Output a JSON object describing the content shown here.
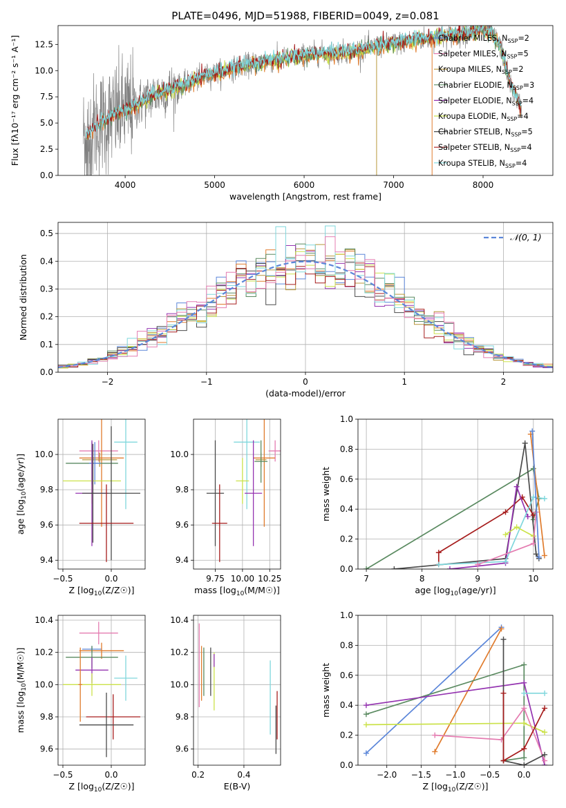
{
  "figure_title": "PLATE=0496, MJD=51988, FIBERID=0049, z=0.081",
  "colors": {
    "Chabrier MILES": "#5b86d9",
    "Salpeter MILES": "#e07b2c",
    "Kroupa MILES": "#b8963a",
    "Chabrier ELODIE": "#5a8a60",
    "Salpeter ELODIE": "#9433b0",
    "Kroupa ELODIE": "#cbe24a",
    "Chabrier STELIB": "#4a4a4a",
    "Salpeter STELIB": "#a61c1c",
    "Kroupa STELIB": "#7fd7dc",
    "extra": "#e47bb0",
    "data": "#808080",
    "norm": "#5b86d9"
  },
  "chart_data": [
    {
      "type": "line",
      "id": "spectrum",
      "xlabel": "wavelength [Angstrom, rest frame]",
      "ylabel": "Flux [fλ10⁻¹⁷ erg cm⁻² s⁻¹ A⁻¹]",
      "xlim": [
        3250,
        8780
      ],
      "ylim": [
        0,
        14.3
      ],
      "xticks": [
        4000,
        5000,
        6000,
        7000,
        8000
      ],
      "yticks": [
        0.0,
        2.5,
        5.0,
        7.5,
        10.0,
        12.5
      ],
      "legend_position": "top-right",
      "legend": [
        {
          "label": "Chabrier MILES, N",
          "sub": "SSP",
          "n": "=2",
          "color": "Chabrier MILES"
        },
        {
          "label": "Salpeter MILES, N",
          "sub": "SSP",
          "n": "=5",
          "color": "extra"
        },
        {
          "label": "Kroupa MILES, N",
          "sub": "SSP",
          "n": "=2",
          "color": "Kroupa MILES"
        },
        {
          "label": "Chabrier ELODIE, N",
          "sub": "SSP",
          "n": "=3",
          "color": "Chabrier ELODIE"
        },
        {
          "label": "Salpeter ELODIE, N",
          "sub": "SSP",
          "n": "=4",
          "color": "Salpeter ELODIE"
        },
        {
          "label": "Kroupa ELODIE, N",
          "sub": "SSP",
          "n": "=4",
          "color": "Kroupa ELODIE"
        },
        {
          "label": "Chabrier STELIB, N",
          "sub": "SSP",
          "n": "=5",
          "color": "Chabrier STELIB"
        },
        {
          "label": "Salpeter STELIB, N",
          "sub": "SSP",
          "n": "=4",
          "color": "Salpeter STELIB"
        },
        {
          "label": "Kroupa STELIB, N",
          "sub": "SSP",
          "n": "=4",
          "color": "Kroupa STELIB"
        }
      ],
      "trend": [
        [
          3530,
          3.8
        ],
        [
          3650,
          4.5
        ],
        [
          3750,
          5.2
        ],
        [
          3900,
          5.8
        ],
        [
          4000,
          6.3
        ],
        [
          4150,
          6.8
        ],
        [
          4300,
          7.6
        ],
        [
          4500,
          8.2
        ],
        [
          4700,
          8.8
        ],
        [
          4900,
          9.5
        ],
        [
          5100,
          10.0
        ],
        [
          5300,
          10.4
        ],
        [
          5500,
          10.8
        ],
        [
          5700,
          11.0
        ],
        [
          5900,
          11.3
        ],
        [
          6100,
          11.6
        ],
        [
          6300,
          11.7
        ],
        [
          6500,
          11.8
        ],
        [
          6700,
          12.1
        ],
        [
          6900,
          12.5
        ],
        [
          7100,
          12.7
        ],
        [
          7300,
          13.0
        ],
        [
          7500,
          13.2
        ],
        [
          7700,
          13.4
        ],
        [
          7900,
          13.7
        ],
        [
          8000,
          13.9
        ],
        [
          8100,
          13.6
        ],
        [
          8200,
          12.2
        ],
        [
          8300,
          8.8
        ],
        [
          8420,
          6.5
        ]
      ]
    },
    {
      "type": "step",
      "id": "residual-histogram",
      "xlabel": "(data-model)/error",
      "ylabel": "Normed distribution",
      "xlim": [
        -2.5,
        2.5
      ],
      "ylim": [
        0,
        0.54
      ],
      "xticks": [
        -2,
        -1,
        0,
        1,
        2
      ],
      "yticks": [
        0.0,
        0.1,
        0.2,
        0.3,
        0.4,
        0.5
      ],
      "grid": true,
      "bin_width": 0.1,
      "legend_label": "𝒩(0, 1)",
      "legend_position": "top-right",
      "series_colors": [
        "Chabrier MILES",
        "Salpeter MILES",
        "Kroupa MILES",
        "Chabrier ELODIE",
        "Salpeter ELODIE",
        "Kroupa ELODIE",
        "Chabrier STELIB",
        "Salpeter STELIB",
        "Kroupa STELIB",
        "extra"
      ]
    },
    {
      "type": "errorbar",
      "id": "age-vs-z",
      "xlabel": "Z [log10(Z/Z☉)]",
      "ylabel": "age  [log10(age/yr)]",
      "xlim": [
        -0.55,
        0.35
      ],
      "ylim": [
        9.35,
        10.2
      ],
      "xticks": [
        -0.5,
        0.0
      ],
      "yticks": [
        9.4,
        9.6,
        9.8,
        10.0
      ],
      "grid": true,
      "points": [
        {
          "x": 0.15,
          "y": 10.07,
          "xerr": 0.12,
          "yerr": 0.38,
          "color": "Kroupa STELIB"
        },
        {
          "x": -0.13,
          "y": 10.02,
          "xerr": 0.2,
          "yerr": 0.06,
          "color": "extra"
        },
        {
          "x": -0.1,
          "y": 9.98,
          "xerr": 0.23,
          "yerr": 0.39,
          "color": "Salpeter MILES"
        },
        {
          "x": -0.12,
          "y": 9.97,
          "xerr": 0.18,
          "yerr": 0.04,
          "color": "Kroupa MILES"
        },
        {
          "x": -0.2,
          "y": 9.95,
          "xerr": 0.27,
          "yerr": 0.12,
          "color": "Chabrier ELODIE"
        },
        {
          "x": -0.17,
          "y": 9.95,
          "xerr": 0.06,
          "yerr": 0.12,
          "color": "Chabrier MILES"
        },
        {
          "x": -0.2,
          "y": 9.85,
          "xerr": 0.3,
          "yerr": 0.13,
          "color": "Kroupa ELODIE"
        },
        {
          "x": -0.2,
          "y": 9.78,
          "xerr": 0.17,
          "yerr": 0.3,
          "color": "Salpeter ELODIE"
        },
        {
          "x": 0.0,
          "y": 9.78,
          "xerr": 0.3,
          "yerr": 0.38,
          "color": "Chabrier STELIB"
        },
        {
          "x": -0.19,
          "y": 9.78,
          "xerr": 0.02,
          "yerr": 0.28,
          "color": "Chabrier STELIB"
        },
        {
          "x": -0.05,
          "y": 9.61,
          "xerr": 0.28,
          "yerr": 0.22,
          "color": "Salpeter STELIB"
        }
      ]
    },
    {
      "type": "errorbar",
      "id": "age-vs-mass",
      "xlabel": "mass [log10(M/M☉)]",
      "ylabel": "",
      "xlim": [
        9.55,
        10.35
      ],
      "ylim": [
        9.35,
        10.2
      ],
      "xticks": [
        9.75,
        10.0,
        10.25
      ],
      "xticklabels": [
        "9.75",
        "10.00",
        "10.25"
      ],
      "yticks": [
        9.4,
        9.6,
        9.8,
        10.0
      ],
      "grid": true,
      "points": [
        {
          "x": 10.04,
          "y": 10.07,
          "xerr": 0.12,
          "yerr": 0.38,
          "color": "Kroupa STELIB"
        },
        {
          "x": 10.3,
          "y": 10.02,
          "xerr": 0.06,
          "yerr": 0.06,
          "color": "extra"
        },
        {
          "x": 10.2,
          "y": 9.98,
          "xerr": 0.1,
          "yerr": 0.39,
          "color": "Salpeter MILES"
        },
        {
          "x": 10.17,
          "y": 9.97,
          "xerr": 0.05,
          "yerr": 0.04,
          "color": "Kroupa MILES"
        },
        {
          "x": 10.17,
          "y": 9.96,
          "xerr": 0.06,
          "yerr": 0.12,
          "color": "Chabrier ELODIE"
        },
        {
          "x": 10.0,
          "y": 9.85,
          "xerr": 0.06,
          "yerr": 0.13,
          "color": "Kroupa ELODIE"
        },
        {
          "x": 10.1,
          "y": 9.78,
          "xerr": 0.08,
          "yerr": 0.3,
          "color": "Salpeter ELODIE"
        },
        {
          "x": 9.75,
          "y": 9.78,
          "xerr": 0.08,
          "yerr": 0.3,
          "color": "Chabrier STELIB"
        },
        {
          "x": 9.79,
          "y": 9.61,
          "xerr": 0.07,
          "yerr": 0.22,
          "color": "Salpeter STELIB"
        }
      ]
    },
    {
      "type": "line",
      "id": "mass-weight-vs-age",
      "xlabel": "age  [log10(age/yr)]",
      "ylabel": "mass weight",
      "xlim": [
        6.85,
        10.35
      ],
      "ylim": [
        0,
        1.0
      ],
      "xticks": [
        7,
        8,
        9,
        10
      ],
      "yticks": [
        0.0,
        0.2,
        0.4,
        0.6,
        0.8,
        1.0
      ],
      "grid": true,
      "series": [
        {
          "color": "Chabrier ELODIE",
          "points": [
            [
              7.0,
              0.0
            ],
            [
              10.0,
              0.67
            ],
            [
              10.1,
              0.47
            ],
            [
              10.0,
              0.33
            ]
          ]
        },
        {
          "color": "Chabrier STELIB",
          "points": [
            [
              7.5,
              0.0
            ],
            [
              9.5,
              0.07
            ],
            [
              9.85,
              0.84
            ],
            [
              10.05,
              0.1
            ],
            [
              10.1,
              0.07
            ]
          ]
        },
        {
          "color": "Salpeter STELIB",
          "points": [
            [
              8.3,
              0.03
            ],
            [
              8.3,
              0.11
            ],
            [
              9.5,
              0.38
            ],
            [
              9.8,
              0.48
            ],
            [
              10.0,
              0.36
            ]
          ]
        },
        {
          "color": "Salpeter ELODIE",
          "points": [
            [
              8.5,
              0.0
            ],
            [
              9.5,
              0.04
            ],
            [
              9.7,
              0.55
            ],
            [
              9.9,
              0.35
            ]
          ]
        },
        {
          "color": "Kroupa STELIB",
          "points": [
            [
              8.3,
              0.03
            ],
            [
              9.5,
              0.05
            ],
            [
              10.0,
              0.48
            ],
            [
              10.2,
              0.47
            ]
          ]
        },
        {
          "color": "Kroupa ELODIE",
          "points": [
            [
              9.5,
              0.23
            ],
            [
              9.7,
              0.28
            ],
            [
              10.0,
              0.22
            ]
          ]
        },
        {
          "color": "extra",
          "points": [
            [
              9.0,
              0.03
            ],
            [
              10.0,
              0.17
            ],
            [
              10.05,
              0.38
            ]
          ]
        },
        {
          "color": "Salpeter MILES",
          "points": [
            [
              9.95,
              0.9
            ],
            [
              10.2,
              0.09
            ]
          ]
        },
        {
          "color": "Chabrier MILES",
          "points": [
            [
              9.98,
              0.92
            ],
            [
              10.1,
              0.08
            ]
          ]
        }
      ]
    },
    {
      "type": "errorbar",
      "id": "mass-vs-z",
      "xlabel": "Z [log10(Z/Z☉)]",
      "ylabel": "mass [log10(M/M☉)]",
      "xlim": [
        -0.55,
        0.35
      ],
      "ylim": [
        9.5,
        10.43
      ],
      "xticks": [
        -0.5,
        0.0
      ],
      "yticks": [
        9.6,
        9.8,
        10.0,
        10.2,
        10.4
      ],
      "grid": true,
      "points": [
        {
          "x": -0.13,
          "y": 10.32,
          "xerr": 0.2,
          "yerr": 0.07,
          "color": "extra"
        },
        {
          "x": -0.2,
          "y": 10.22,
          "xerr": 0.1,
          "yerr": 0.02,
          "color": "Chabrier MILES"
        },
        {
          "x": -0.1,
          "y": 10.21,
          "xerr": 0.23,
          "yerr": 0.05,
          "color": "Salpeter MILES"
        },
        {
          "x": -0.2,
          "y": 10.17,
          "xerr": 0.27,
          "yerr": 0.07,
          "color": "Chabrier ELODIE"
        },
        {
          "x": -0.2,
          "y": 10.09,
          "xerr": 0.17,
          "yerr": 0.08,
          "color": "Salpeter ELODIE"
        },
        {
          "x": 0.15,
          "y": 10.04,
          "xerr": 0.12,
          "yerr": 0.14,
          "color": "Kroupa STELIB"
        },
        {
          "x": -0.2,
          "y": 10.0,
          "xerr": 0.3,
          "yerr": 0.07,
          "color": "Kroupa ELODIE"
        },
        {
          "x": -0.32,
          "y": 10.0,
          "xerr": 0.02,
          "yerr": 0.23,
          "color": "Salpeter MILES"
        },
        {
          "x": 0.02,
          "y": 9.8,
          "xerr": 0.28,
          "yerr": 0.14,
          "color": "Salpeter STELIB"
        },
        {
          "x": -0.05,
          "y": 9.75,
          "xerr": 0.28,
          "yerr": 0.2,
          "color": "Chabrier STELIB"
        }
      ]
    },
    {
      "type": "errorbar",
      "id": "mass-vs-ebv",
      "xlabel": "E(B-V)",
      "ylabel": "",
      "xlim": [
        0.18,
        0.56
      ],
      "ylim": [
        9.5,
        10.43
      ],
      "xticks": [
        0.2,
        0.4
      ],
      "yticks": [
        9.6,
        9.8,
        10.0,
        10.2,
        10.4
      ],
      "grid": true,
      "points": [
        {
          "x": 0.205,
          "y": 10.12,
          "xerr": 0,
          "yerr": 0.26,
          "color": "extra"
        },
        {
          "x": 0.215,
          "y": 10.07,
          "xerr": 0,
          "yerr": 0.17,
          "color": "Salpeter MILES"
        },
        {
          "x": 0.225,
          "y": 10.08,
          "xerr": 0,
          "yerr": 0.15,
          "color": "Chabrier ELODIE"
        },
        {
          "x": 0.255,
          "y": 10.08,
          "xerr": 0,
          "yerr": 0.15,
          "color": "Chabrier STELIB"
        },
        {
          "x": 0.27,
          "y": 10.02,
          "xerr": 0,
          "yerr": 0.18,
          "color": "Kroupa ELODIE"
        },
        {
          "x": 0.27,
          "y": 10.15,
          "xerr": 0,
          "yerr": 0.04,
          "color": "Salpeter ELODIE"
        },
        {
          "x": 0.515,
          "y": 9.92,
          "xerr": 0,
          "yerr": 0.23,
          "color": "Kroupa STELIB"
        },
        {
          "x": 0.545,
          "y": 9.81,
          "xerr": 0,
          "yerr": 0.15,
          "color": "Salpeter STELIB"
        },
        {
          "x": 0.54,
          "y": 9.72,
          "xerr": 0,
          "yerr": 0.15,
          "color": "Chabrier STELIB"
        }
      ]
    },
    {
      "type": "line",
      "id": "mass-weight-vs-z",
      "xlabel": "Z [log10(Z/Z☉)]",
      "ylabel": "mass weight",
      "xlim": [
        -2.42,
        0.42
      ],
      "ylim": [
        0,
        1.0
      ],
      "xticks": [
        -2.0,
        -1.5,
        -1.0,
        -0.5,
        0.0
      ],
      "yticks": [
        0.0,
        0.2,
        0.4,
        0.6,
        0.8,
        1.0
      ],
      "grid": true,
      "series": [
        {
          "color": "Chabrier MILES",
          "points": [
            [
              -2.3,
              0.08
            ],
            [
              -0.33,
              0.92
            ]
          ]
        },
        {
          "color": "Salpeter MILES",
          "points": [
            [
              -1.3,
              0.09
            ],
            [
              -0.33,
              0.91
            ]
          ]
        },
        {
          "color": "Chabrier ELODIE",
          "points": [
            [
              -2.3,
              0.34
            ],
            [
              0.0,
              0.67
            ],
            [
              0.0,
              0.05
            ],
            [
              -0.3,
              0.03
            ]
          ]
        },
        {
          "color": "Salpeter ELODIE",
          "points": [
            [
              -2.3,
              0.4
            ],
            [
              0.0,
              0.55
            ],
            [
              0.3,
              0.0
            ]
          ]
        },
        {
          "color": "Kroupa ELODIE",
          "points": [
            [
              -2.3,
              0.27
            ],
            [
              0.0,
              0.28
            ],
            [
              0.3,
              0.22
            ]
          ]
        },
        {
          "color": "extra",
          "points": [
            [
              -1.3,
              0.2
            ],
            [
              -0.33,
              0.17
            ],
            [
              0.0,
              0.38
            ],
            [
              0.3,
              0.03
            ]
          ]
        },
        {
          "color": "Chabrier STELIB",
          "points": [
            [
              -0.3,
              0.84
            ],
            [
              -0.3,
              0.03
            ],
            [
              0.0,
              0.0
            ],
            [
              0.3,
              0.07
            ]
          ]
        },
        {
          "color": "Salpeter STELIB",
          "points": [
            [
              -0.3,
              0.48
            ],
            [
              -0.3,
              0.03
            ],
            [
              0.0,
              0.11
            ],
            [
              0.3,
              0.38
            ]
          ]
        },
        {
          "color": "Kroupa STELIB",
          "points": [
            [
              0.0,
              0.48
            ],
            [
              0.3,
              0.48
            ]
          ]
        }
      ]
    }
  ]
}
